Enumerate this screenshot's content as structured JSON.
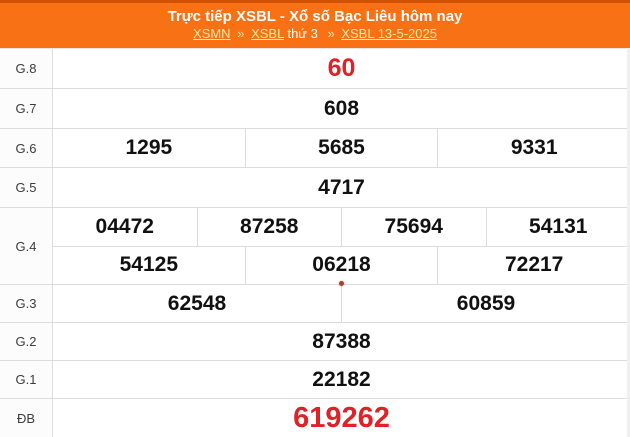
{
  "colors": {
    "header_bg": "#F87114",
    "header_top_strip": "#CF5000",
    "link_yellow": "#FFE9A0",
    "highlight_red": "#E02128",
    "number_black": "#111111",
    "label_gray": "#3C3C3C",
    "border_gray": "#DCDCDC",
    "label_col_bg": "#FCFCFC",
    "live_dot": "#A94034"
  },
  "header": {
    "title": "Trực tiếp XSBL - Xổ số Bạc Liêu hôm nay",
    "breadcrumb": {
      "xsmn_link": "XSMN",
      "sep1": "»",
      "xsbl_link": "XSBL",
      "weekday_text": "thứ 3",
      "sep2": "»",
      "date_link": "XSBL 13-5-2025"
    }
  },
  "prize_table": {
    "rows": [
      {
        "label": "G.8",
        "values": [
          "60"
        ]
      },
      {
        "label": "G.7",
        "values": [
          "608"
        ]
      },
      {
        "label": "G.6",
        "values": [
          "1295",
          "5685",
          "9331"
        ]
      },
      {
        "label": "G.5",
        "values": [
          "4717"
        ]
      },
      {
        "label": "G.4",
        "line1": [
          "04472",
          "87258",
          "75694",
          "54131"
        ],
        "line2": [
          "54125",
          "06218",
          "72217"
        ]
      },
      {
        "label": "G.3",
        "values": [
          "62548",
          "60859"
        ]
      },
      {
        "label": "G.2",
        "values": [
          "87388"
        ]
      },
      {
        "label": "G.1",
        "values": [
          "22182"
        ]
      },
      {
        "label": "ĐB",
        "values": [
          "619262"
        ]
      }
    ]
  }
}
